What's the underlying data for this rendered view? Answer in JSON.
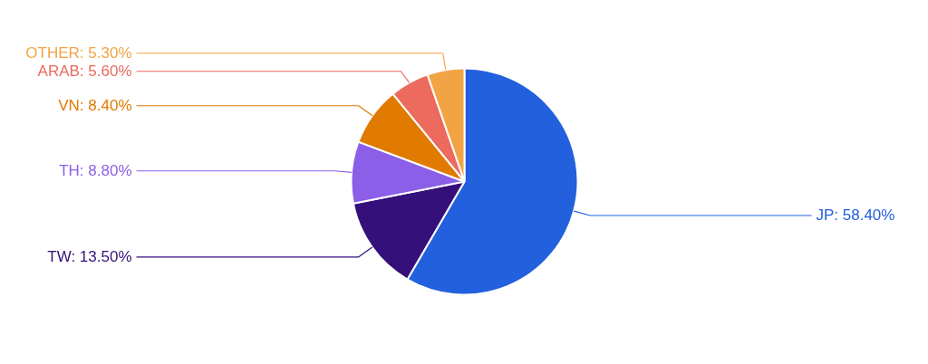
{
  "chart_data": {
    "type": "pie",
    "categories": [
      "JP",
      "TW",
      "TH",
      "VN",
      "ARAB",
      "OTHER"
    ],
    "values": [
      58.4,
      13.5,
      8.8,
      8.4,
      5.6,
      5.3
    ],
    "colors": [
      "#2360dd",
      "#35107a",
      "#8c5fe8",
      "#e07a00",
      "#ec6a5e",
      "#f2a444"
    ],
    "value_labels": [
      "58.40%",
      "13.50%",
      "8.80%",
      "8.40%",
      "5.60%",
      "5.30%"
    ]
  }
}
